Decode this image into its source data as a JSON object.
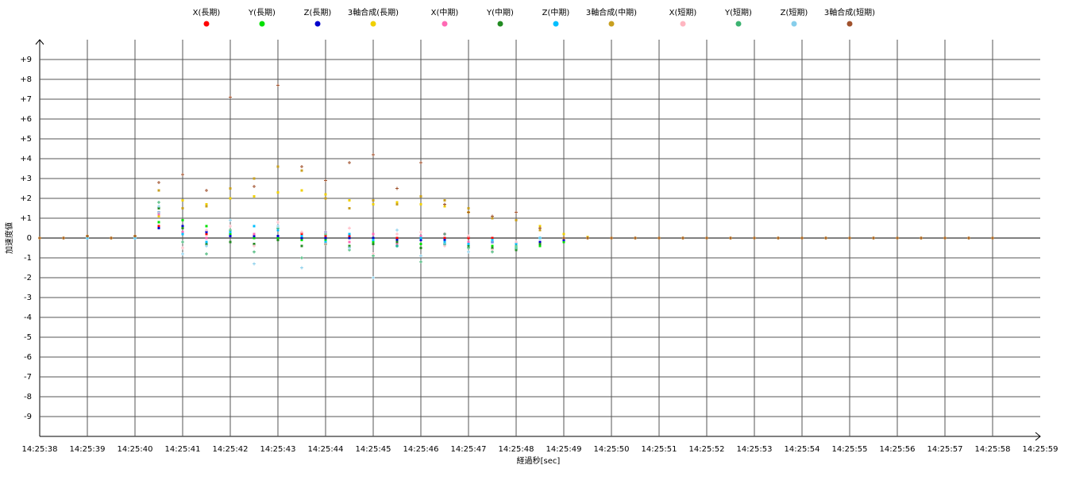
{
  "chart_data": {
    "type": "scatter",
    "x_label": "経過秒[sec]",
    "y_label": "加速度値",
    "xlim": [
      38,
      59
    ],
    "ylim": [
      -10,
      10
    ],
    "xticks": [
      {
        "value": 38,
        "label": "14:25:38"
      },
      {
        "value": 39,
        "label": "14:25:39"
      },
      {
        "value": 40,
        "label": "14:25:40"
      },
      {
        "value": 41,
        "label": "14:25:41"
      },
      {
        "value": 42,
        "label": "14:25:42"
      },
      {
        "value": 43,
        "label": "14:25:43"
      },
      {
        "value": 44,
        "label": "14:25:44"
      },
      {
        "value": 45,
        "label": "14:25:45"
      },
      {
        "value": 46,
        "label": "14:25:46"
      },
      {
        "value": 47,
        "label": "14:25:47"
      },
      {
        "value": 48,
        "label": "14:25:48"
      },
      {
        "value": 49,
        "label": "14:25:49"
      },
      {
        "value": 50,
        "label": "14:25:50"
      },
      {
        "value": 51,
        "label": "14:25:51"
      },
      {
        "value": 52,
        "label": "14:25:52"
      },
      {
        "value": 53,
        "label": "14:25:53"
      },
      {
        "value": 54,
        "label": "14:25:54"
      },
      {
        "value": 55,
        "label": "14:25:55"
      },
      {
        "value": 56,
        "label": "14:25:56"
      },
      {
        "value": 57,
        "label": "14:25:57"
      },
      {
        "value": 58,
        "label": "14:25:58"
      },
      {
        "value": 59,
        "label": "14:25:59"
      }
    ],
    "yticks": [
      {
        "value": 9,
        "label": "+9"
      },
      {
        "value": 8,
        "label": "+8"
      },
      {
        "value": 7,
        "label": "+7"
      },
      {
        "value": 6,
        "label": "+6"
      },
      {
        "value": 5,
        "label": "+5"
      },
      {
        "value": 4,
        "label": "+4"
      },
      {
        "value": 3,
        "label": "+3"
      },
      {
        "value": 2,
        "label": "+2"
      },
      {
        "value": 1,
        "label": "+1"
      },
      0,
      -1,
      -2,
      -3,
      -4,
      -5,
      -6,
      -7,
      -8,
      -9
    ],
    "grid": true,
    "x": [
      38,
      38.5,
      39,
      39.5,
      40,
      40.5,
      41,
      41.5,
      42,
      42.5,
      43,
      43.5,
      44,
      44.5,
      45,
      45.5,
      46,
      46.5,
      47,
      47.5,
      48,
      48.5,
      49,
      49.5,
      50,
      50.5,
      51,
      51.5,
      52,
      52.5,
      53,
      53.5,
      54,
      54.5,
      55,
      55.5,
      56,
      56.5,
      57,
      57.5,
      58
    ],
    "series": [
      {
        "name": "X(長期)",
        "color": "#ff0000",
        "values": [
          0,
          0,
          0,
          0,
          0,
          0.6,
          0.5,
          0.2,
          0.1,
          0.1,
          0.1,
          0.2,
          0.1,
          0.1,
          0,
          0,
          0,
          0,
          0,
          0,
          -0.3,
          -0.2,
          0,
          0,
          0,
          0,
          0,
          0,
          0,
          0,
          0,
          0,
          0,
          0,
          0,
          0,
          0,
          0,
          0,
          0,
          0
        ]
      },
      {
        "name": "Y(長期)",
        "color": "#00e000",
        "values": [
          0,
          0,
          0,
          0,
          0,
          0.8,
          0.9,
          0.6,
          0.2,
          0,
          0,
          -0.1,
          -0.1,
          -0.2,
          -0.2,
          -0.3,
          -0.3,
          -0.3,
          -0.3,
          -0.4,
          -0.5,
          -0.4,
          -0.2,
          0,
          0,
          0,
          0,
          0,
          0,
          0,
          0,
          0,
          0,
          0,
          0,
          0,
          0,
          0,
          0,
          0,
          0
        ]
      },
      {
        "name": "Z(長期)",
        "color": "#0000cc",
        "values": [
          0,
          0,
          0,
          0,
          0,
          0.5,
          0.6,
          0.3,
          0.1,
          0.1,
          0.1,
          0,
          0,
          0,
          0,
          -0.1,
          -0.1,
          -0.1,
          -0.2,
          -0.2,
          -0.3,
          -0.2,
          -0.1,
          0,
          0,
          0,
          0,
          0,
          0,
          0,
          0,
          0,
          0,
          0,
          0,
          0,
          0,
          0,
          0,
          0,
          0
        ]
      },
      {
        "name": "3軸合成(長期)",
        "color": "#f0d000",
        "values": [
          0,
          0,
          0,
          0,
          0,
          1.1,
          1.9,
          1.7,
          2.0,
          2.1,
          2.3,
          2.4,
          2.2,
          1.9,
          1.7,
          1.8,
          1.7,
          1.6,
          1.3,
          1.0,
          0.9,
          0.6,
          0.2,
          0.05,
          0,
          0,
          0,
          0,
          0,
          0,
          0,
          0,
          0,
          0,
          0,
          0,
          0,
          0,
          0,
          0,
          0
        ]
      },
      {
        "name": "X(中期)",
        "color": "#ff69b4",
        "values": [
          0,
          0,
          0,
          0,
          0,
          1.2,
          0.3,
          0,
          0.3,
          0.2,
          0.4,
          0.1,
          0.3,
          -0.2,
          0.2,
          -0.3,
          0.1,
          0.2,
          -0.2,
          -0.5,
          -0.3,
          0,
          0,
          0,
          0,
          0,
          0,
          0,
          0,
          0,
          0,
          0,
          0,
          0,
          0,
          0,
          0,
          0,
          0,
          0,
          0
        ]
      },
      {
        "name": "Y(中期)",
        "color": "#228b22",
        "values": [
          0,
          0,
          0,
          0,
          0,
          1.5,
          0.5,
          -0.3,
          -0.2,
          -0.3,
          -0.1,
          -0.4,
          -0.3,
          -0.4,
          -0.3,
          -0.2,
          -0.5,
          -0.3,
          -0.4,
          -0.5,
          -0.6,
          -0.3,
          0,
          0,
          0,
          0,
          0,
          0,
          0,
          0,
          0,
          0,
          0,
          0,
          0,
          0,
          0,
          0,
          0,
          0,
          0
        ]
      },
      {
        "name": "Z(中期)",
        "color": "#00bfff",
        "values": [
          0,
          0,
          0,
          0,
          0,
          1.3,
          0.2,
          -0.2,
          0.3,
          0.6,
          0.4,
          0.1,
          -0.2,
          0.2,
          -0.1,
          -0.4,
          0,
          -0.2,
          -0.3,
          -0.1,
          -0.3,
          0,
          0,
          0,
          0,
          0,
          0,
          0,
          0,
          0,
          0,
          0,
          0,
          0,
          0,
          0,
          0,
          0,
          0,
          0,
          0
        ]
      },
      {
        "name": "3軸合成(中期)",
        "color": "#c8a020",
        "values": [
          0,
          0,
          0.1,
          0,
          0.1,
          2.4,
          1.5,
          1.6,
          2.5,
          3.0,
          3.6,
          3.4,
          2.0,
          1.5,
          1.9,
          1.7,
          2.1,
          1.9,
          1.5,
          1.0,
          0.9,
          0.4,
          0,
          0,
          0,
          0,
          0,
          0,
          0,
          0,
          0,
          0,
          0,
          0,
          0,
          0,
          0,
          0,
          0,
          0,
          0
        ]
      },
      {
        "name": "X(短期)",
        "color": "#ffb6c1",
        "values": [
          0,
          0,
          0,
          0,
          0,
          1.3,
          -0.5,
          0.4,
          0.6,
          -0.4,
          0.8,
          0.3,
          -0.3,
          0.5,
          -0.8,
          0.2,
          0.3,
          -0.4,
          0.1,
          -0.6,
          -0.2,
          0,
          0,
          0,
          0,
          0,
          0,
          0,
          0,
          0,
          0,
          0,
          0,
          0,
          0,
          0,
          0,
          0,
          0,
          0,
          0
        ]
      },
      {
        "name": "Y(短期)",
        "color": "#3cb371",
        "values": [
          0,
          0,
          0,
          0,
          0,
          1.8,
          -0.2,
          -0.8,
          0.4,
          -0.7,
          0.5,
          -1.0,
          0.2,
          -0.6,
          -0.9,
          -0.4,
          -1.2,
          0.2,
          -0.5,
          -0.7,
          -0.4,
          0,
          0,
          0,
          0,
          0,
          0,
          0,
          0,
          0,
          0,
          0,
          0,
          0,
          0,
          0,
          0,
          0,
          0,
          0,
          0
        ]
      },
      {
        "name": "Z(短期)",
        "color": "#87ceeb",
        "values": [
          0,
          0,
          0,
          0,
          0,
          1.6,
          -0.8,
          -0.4,
          0.9,
          -1.3,
          0.6,
          -1.5,
          0.3,
          -0.5,
          -2.0,
          0.4,
          -0.9,
          -0.3,
          -0.7,
          -0.2,
          -0.5,
          0,
          0,
          0,
          0,
          0,
          0,
          0,
          0,
          0,
          0,
          0,
          0,
          0,
          0,
          0,
          0,
          0,
          0,
          0,
          0
        ]
      },
      {
        "name": "3軸合成(短期)",
        "color": "#a0522d",
        "values": [
          0,
          0,
          0.1,
          0,
          0.1,
          2.8,
          3.2,
          2.4,
          7.1,
          2.6,
          7.7,
          3.6,
          2.9,
          3.8,
          4.2,
          2.5,
          3.8,
          1.7,
          1.3,
          1.1,
          1.3,
          0.5,
          0,
          0,
          0,
          0,
          0,
          0,
          0,
          0,
          0,
          0,
          0,
          0,
          0,
          0,
          0,
          0,
          0,
          0,
          0
        ]
      }
    ]
  }
}
